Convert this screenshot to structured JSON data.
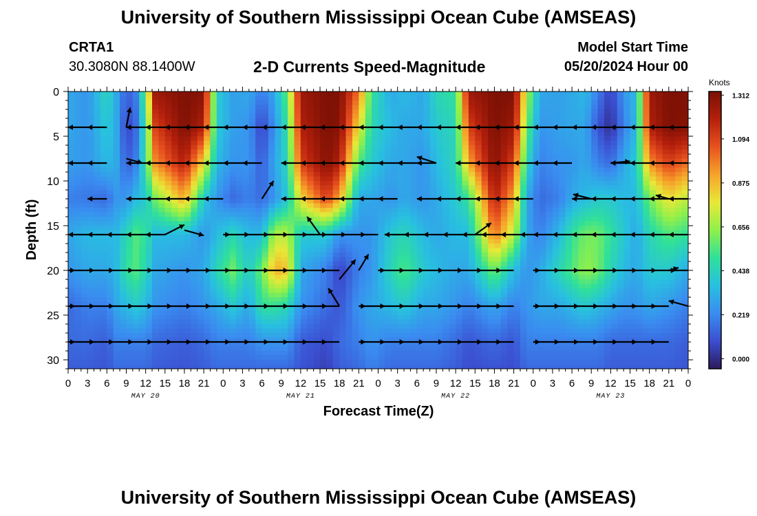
{
  "header": {
    "title": "University of Southern Mississippi Ocean Cube (AMSEAS)",
    "station": "CRTA1",
    "coords": "30.3080N  88.1400W",
    "subtitle": "2-D Currents Speed-Magnitude",
    "model_start_label": "Model Start Time",
    "model_start_value": "05/20/2024 Hour 00"
  },
  "footer": {
    "title": "University of Southern Mississippi Ocean Cube (AMSEAS)"
  },
  "chart_data": {
    "type": "heatmap",
    "title": "2-D Currents Speed-Magnitude",
    "xlabel": "Forecast Time(Z)",
    "ylabel": "Depth (ft)",
    "xlim": [
      0,
      96
    ],
    "ylim": [
      0,
      31
    ],
    "x_ticks": [
      {
        "v": 0,
        "label": "0"
      },
      {
        "v": 3,
        "label": "3"
      },
      {
        "v": 6,
        "label": "6"
      },
      {
        "v": 9,
        "label": "9"
      },
      {
        "v": 12,
        "label": "12"
      },
      {
        "v": 15,
        "label": "15"
      },
      {
        "v": 18,
        "label": "18"
      },
      {
        "v": 21,
        "label": "21"
      },
      {
        "v": 24,
        "label": "0"
      },
      {
        "v": 27,
        "label": "3"
      },
      {
        "v": 30,
        "label": "6"
      },
      {
        "v": 33,
        "label": "9"
      },
      {
        "v": 36,
        "label": "12"
      },
      {
        "v": 39,
        "label": "15"
      },
      {
        "v": 42,
        "label": "18"
      },
      {
        "v": 45,
        "label": "21"
      },
      {
        "v": 48,
        "label": "0"
      },
      {
        "v": 51,
        "label": "3"
      },
      {
        "v": 54,
        "label": "6"
      },
      {
        "v": 57,
        "label": "9"
      },
      {
        "v": 60,
        "label": "12"
      },
      {
        "v": 63,
        "label": "15"
      },
      {
        "v": 66,
        "label": "18"
      },
      {
        "v": 69,
        "label": "21"
      },
      {
        "v": 72,
        "label": "0"
      },
      {
        "v": 75,
        "label": "3"
      },
      {
        "v": 78,
        "label": "6"
      },
      {
        "v": 81,
        "label": "9"
      },
      {
        "v": 84,
        "label": "12"
      },
      {
        "v": 87,
        "label": "15"
      },
      {
        "v": 90,
        "label": "18"
      },
      {
        "v": 93,
        "label": "21"
      },
      {
        "v": 96,
        "label": "0"
      }
    ],
    "day_labels": [
      {
        "v": 12,
        "label": "MAY 20"
      },
      {
        "v": 36,
        "label": "MAY 21"
      },
      {
        "v": 60,
        "label": "MAY 22"
      },
      {
        "v": 84,
        "label": "MAY 23"
      }
    ],
    "y_ticks": [
      0,
      5,
      10,
      15,
      20,
      25,
      30
    ],
    "colorbar": {
      "units": "Knots",
      "min": -0.05,
      "max": 1.33,
      "ticks": [
        {
          "v": 1.312,
          "label": "1.312"
        },
        {
          "v": 1.094,
          "label": "1.094"
        },
        {
          "v": 0.875,
          "label": "0.875"
        },
        {
          "v": 0.656,
          "label": "0.656"
        },
        {
          "v": 0.438,
          "label": "0.438"
        },
        {
          "v": 0.219,
          "label": "0.219"
        },
        {
          "v": 0.0,
          "label": "0.000"
        }
      ],
      "colors": [
        "#2c1a5c",
        "#3b4fd1",
        "#3a8cf0",
        "#28c0e0",
        "#2fe09a",
        "#8ff04a",
        "#e8e838",
        "#f6a42a",
        "#e8521f",
        "#b5200c",
        "#7a1004"
      ]
    },
    "speed_depths": [
      0,
      4,
      8,
      12,
      16,
      20,
      24,
      28,
      31
    ],
    "speed_columns": [
      {
        "t": 0,
        "s": [
          0.3,
          0.3,
          0.28,
          0.2,
          0.3,
          0.25,
          0.15,
          0.15,
          0.12
        ]
      },
      {
        "t": 3,
        "s": [
          0.25,
          0.25,
          0.25,
          0.18,
          0.35,
          0.3,
          0.2,
          0.15,
          0.12
        ]
      },
      {
        "t": 6,
        "s": [
          0.45,
          0.4,
          0.35,
          0.15,
          0.35,
          0.3,
          0.2,
          0.12,
          0.1
        ]
      },
      {
        "t": 7.5,
        "s": [
          0.3,
          0.3,
          0.3,
          0.25,
          0.35,
          0.35,
          0.3,
          0.2,
          0.15
        ]
      },
      {
        "t": 9,
        "s": [
          0.12,
          0.05,
          0.12,
          0.25,
          0.45,
          0.5,
          0.35,
          0.2,
          0.15
        ]
      },
      {
        "t": 10.5,
        "s": [
          0.2,
          0.15,
          0.2,
          0.35,
          0.55,
          0.55,
          0.4,
          0.2,
          0.15
        ]
      },
      {
        "t": 12,
        "s": [
          0.6,
          0.5,
          0.5,
          0.4,
          0.5,
          0.45,
          0.35,
          0.2,
          0.15
        ]
      },
      {
        "t": 13.5,
        "s": [
          1.25,
          1.1,
          0.95,
          0.6,
          0.35,
          0.3,
          0.25,
          0.15,
          0.12
        ]
      },
      {
        "t": 18,
        "s": [
          1.32,
          1.32,
          1.2,
          0.9,
          0.35,
          0.25,
          0.2,
          0.12,
          0.1
        ]
      },
      {
        "t": 21,
        "s": [
          1.3,
          1.2,
          0.8,
          0.4,
          0.25,
          0.3,
          0.25,
          0.15,
          0.12
        ]
      },
      {
        "t": 23,
        "s": [
          0.4,
          0.4,
          0.35,
          0.25,
          0.35,
          0.45,
          0.3,
          0.2,
          0.15
        ]
      },
      {
        "t": 25.5,
        "s": [
          0.28,
          0.28,
          0.25,
          0.15,
          0.45,
          0.6,
          0.4,
          0.2,
          0.15
        ]
      },
      {
        "t": 28,
        "s": [
          0.3,
          0.25,
          0.25,
          0.2,
          0.35,
          0.4,
          0.3,
          0.2,
          0.15
        ]
      },
      {
        "t": 30,
        "s": [
          0.2,
          0.05,
          0.12,
          0.15,
          0.35,
          0.6,
          0.5,
          0.25,
          0.15
        ]
      },
      {
        "t": 32,
        "s": [
          0.3,
          0.25,
          0.3,
          0.25,
          0.7,
          0.9,
          0.5,
          0.25,
          0.15
        ]
      },
      {
        "t": 34,
        "s": [
          0.6,
          0.5,
          0.45,
          0.4,
          0.7,
          0.85,
          0.45,
          0.25,
          0.15
        ]
      },
      {
        "t": 36,
        "s": [
          1.25,
          1.2,
          1.1,
          0.8,
          0.4,
          0.3,
          0.25,
          0.12,
          0.1
        ]
      },
      {
        "t": 40,
        "s": [
          1.32,
          1.32,
          1.3,
          1.1,
          0.4,
          0.2,
          0.15,
          0.08,
          0.05
        ]
      },
      {
        "t": 42,
        "s": [
          1.32,
          1.3,
          1.2,
          0.9,
          0.25,
          0.05,
          0.1,
          0.15,
          0.12
        ]
      },
      {
        "t": 45,
        "s": [
          1.0,
          0.8,
          0.55,
          0.3,
          0.25,
          0.2,
          0.25,
          0.2,
          0.15
        ]
      },
      {
        "t": 47,
        "s": [
          0.5,
          0.45,
          0.4,
          0.3,
          0.25,
          0.25,
          0.3,
          0.25,
          0.2
        ]
      },
      {
        "t": 50,
        "s": [
          0.3,
          0.35,
          0.3,
          0.25,
          0.4,
          0.45,
          0.35,
          0.2,
          0.15
        ]
      },
      {
        "t": 52,
        "s": [
          0.35,
          0.3,
          0.3,
          0.3,
          0.45,
          0.55,
          0.4,
          0.2,
          0.15
        ]
      },
      {
        "t": 55,
        "s": [
          0.3,
          0.3,
          0.25,
          0.25,
          0.35,
          0.4,
          0.3,
          0.2,
          0.15
        ]
      },
      {
        "t": 57,
        "s": [
          0.45,
          0.4,
          0.35,
          0.3,
          0.3,
          0.35,
          0.3,
          0.2,
          0.15
        ]
      },
      {
        "t": 60,
        "s": [
          0.5,
          0.45,
          0.45,
          0.4,
          0.35,
          0.3,
          0.25,
          0.15,
          0.12
        ]
      },
      {
        "t": 62,
        "s": [
          1.25,
          1.1,
          0.9,
          0.5,
          0.35,
          0.3,
          0.2,
          0.1,
          0.08
        ]
      },
      {
        "t": 66,
        "s": [
          1.32,
          1.32,
          1.3,
          1.2,
          1.0,
          0.6,
          0.3,
          0.15,
          0.1
        ]
      },
      {
        "t": 69,
        "s": [
          1.32,
          1.25,
          1.1,
          0.9,
          0.7,
          0.35,
          0.2,
          0.1,
          0.08
        ]
      },
      {
        "t": 71,
        "s": [
          0.7,
          0.6,
          0.45,
          0.3,
          0.3,
          0.25,
          0.25,
          0.2,
          0.15
        ]
      },
      {
        "t": 73,
        "s": [
          0.3,
          0.25,
          0.2,
          0.15,
          0.2,
          0.3,
          0.3,
          0.2,
          0.15
        ]
      },
      {
        "t": 76,
        "s": [
          0.28,
          0.28,
          0.25,
          0.2,
          0.35,
          0.45,
          0.3,
          0.2,
          0.15
        ]
      },
      {
        "t": 78,
        "s": [
          0.3,
          0.3,
          0.25,
          0.3,
          0.5,
          0.55,
          0.35,
          0.2,
          0.15
        ]
      },
      {
        "t": 80,
        "s": [
          0.35,
          0.3,
          0.3,
          0.35,
          0.6,
          0.65,
          0.4,
          0.2,
          0.15
        ]
      },
      {
        "t": 82,
        "s": [
          0.2,
          0.1,
          0.2,
          0.4,
          0.6,
          0.6,
          0.35,
          0.2,
          0.15
        ]
      },
      {
        "t": 84,
        "s": [
          0.05,
          0.0,
          0.15,
          0.4,
          0.5,
          0.45,
          0.3,
          0.15,
          0.12
        ]
      },
      {
        "t": 86,
        "s": [
          0.25,
          0.2,
          0.3,
          0.35,
          0.4,
          0.35,
          0.25,
          0.15,
          0.12
        ]
      },
      {
        "t": 88,
        "s": [
          0.35,
          0.35,
          0.4,
          0.35,
          0.3,
          0.3,
          0.25,
          0.15,
          0.12
        ]
      },
      {
        "t": 90,
        "s": [
          1.25,
          1.2,
          0.95,
          0.6,
          0.45,
          0.4,
          0.3,
          0.15,
          0.12
        ]
      },
      {
        "t": 93,
        "s": [
          1.32,
          1.32,
          1.1,
          0.8,
          0.55,
          0.4,
          0.25,
          0.15,
          0.12
        ]
      },
      {
        "t": 96,
        "s": [
          1.32,
          1.3,
          1.0,
          0.7,
          0.5,
          0.3,
          0.2,
          0.12,
          0.1
        ]
      }
    ],
    "vector_depths": [
      4,
      8,
      12,
      16,
      20,
      24,
      28
    ],
    "vectors": [
      {
        "d": 4,
        "t0": 0,
        "t1": 6,
        "dir": -1,
        "ang": 0
      },
      {
        "d": 4,
        "t0": 9,
        "t1": 24,
        "dir": -1,
        "ang": 0
      },
      {
        "d": 4,
        "t0": 24,
        "t1": 48,
        "dir": -1,
        "ang": 0
      },
      {
        "d": 4,
        "t0": 48,
        "t1": 72,
        "dir": -1,
        "ang": 0
      },
      {
        "d": 4,
        "t0": 72,
        "t1": 96,
        "dir": -1,
        "ang": 0
      },
      {
        "d": 8,
        "t0": 0,
        "t1": 6,
        "dir": -1,
        "ang": 0
      },
      {
        "d": 8,
        "t0": 9,
        "t1": 24,
        "dir": -1,
        "ang": 0
      },
      {
        "d": 8,
        "t0": 24,
        "t1": 30,
        "dir": -1,
        "ang": 0
      },
      {
        "d": 8,
        "t0": 33,
        "t1": 48,
        "dir": -1,
        "ang": 0
      },
      {
        "d": 8,
        "t0": 48,
        "t1": 57,
        "dir": -1,
        "ang": 0
      },
      {
        "d": 8,
        "t0": 60,
        "t1": 78,
        "dir": -1,
        "ang": 0
      },
      {
        "d": 8,
        "t0": 84,
        "t1": 96,
        "dir": -1,
        "ang": 0
      },
      {
        "d": 12,
        "t0": 3,
        "t1": 6,
        "dir": -1,
        "ang": 0
      },
      {
        "d": 12,
        "t0": 9,
        "t1": 24,
        "dir": -1,
        "ang": 0
      },
      {
        "d": 12,
        "t0": 33,
        "t1": 51,
        "dir": -1,
        "ang": 0
      },
      {
        "d": 12,
        "t0": 54,
        "t1": 72,
        "dir": -1,
        "ang": 0
      },
      {
        "d": 12,
        "t0": 78,
        "t1": 96,
        "dir": -1,
        "ang": 0
      },
      {
        "d": 16,
        "t0": 0,
        "t1": 15,
        "dir": -1,
        "ang": 0
      },
      {
        "d": 16,
        "t0": 24,
        "t1": 48,
        "dir": 1,
        "ang": 0
      },
      {
        "d": 16,
        "t0": 49,
        "t1": 72,
        "dir": -1,
        "ang": 0
      },
      {
        "d": 16,
        "t0": 72,
        "t1": 96,
        "dir": -1,
        "ang": 0
      },
      {
        "d": 20,
        "t0": 0,
        "t1": 21,
        "dir": 1,
        "ang": 0
      },
      {
        "d": 20,
        "t0": 21,
        "t1": 42,
        "dir": 1,
        "ang": 0
      },
      {
        "d": 20,
        "t0": 48,
        "t1": 69,
        "dir": 1,
        "ang": 0
      },
      {
        "d": 20,
        "t0": 72,
        "t1": 96,
        "dir": 1,
        "ang": 0
      },
      {
        "d": 24,
        "t0": 0,
        "t1": 21,
        "dir": 1,
        "ang": 0
      },
      {
        "d": 24,
        "t0": 21,
        "t1": 42,
        "dir": 1,
        "ang": 0
      },
      {
        "d": 24,
        "t0": 45,
        "t1": 69,
        "dir": 1,
        "ang": 0
      },
      {
        "d": 24,
        "t0": 72,
        "t1": 93,
        "dir": 1,
        "ang": 0
      },
      {
        "d": 28,
        "t0": 0,
        "t1": 21,
        "dir": 1,
        "ang": 0
      },
      {
        "d": 28,
        "t0": 21,
        "t1": 42,
        "dir": 1,
        "ang": 0
      },
      {
        "d": 28,
        "t0": 45,
        "t1": 60,
        "dir": 1,
        "ang": 0
      },
      {
        "d": 28,
        "t0": 60,
        "t1": 69,
        "dir": 1,
        "ang": 0
      },
      {
        "d": 28,
        "t0": 72,
        "t1": 93,
        "dir": 1,
        "ang": 0
      }
    ],
    "diagonal_vectors": [
      {
        "t": 9,
        "d": 4,
        "dt": 0.6,
        "dd": -2.2
      },
      {
        "t": 9,
        "d": 7.5,
        "dt": 2.5,
        "dd": 0.5
      },
      {
        "t": 30,
        "d": 12,
        "dt": 1.8,
        "dd": -2.0
      },
      {
        "t": 15,
        "d": 16,
        "dt": 3.0,
        "dd": -1.1
      },
      {
        "t": 18,
        "d": 15.5,
        "dt": 3.0,
        "dd": 0.6
      },
      {
        "t": 39,
        "d": 16,
        "dt": -2.0,
        "dd": -2.0
      },
      {
        "t": 42,
        "d": 21,
        "dt": 2.5,
        "dd": -2.2
      },
      {
        "t": 45,
        "d": 20,
        "dt": 1.5,
        "dd": -1.8
      },
      {
        "t": 42,
        "d": 24,
        "dt": -1.7,
        "dd": -2.0
      },
      {
        "t": 63,
        "d": 16,
        "dt": 2.5,
        "dd": -1.3
      },
      {
        "t": 57,
        "d": 8,
        "dt": -3.0,
        "dd": -0.7
      },
      {
        "t": 81,
        "d": 12,
        "dt": -2.8,
        "dd": -0.5
      },
      {
        "t": 84,
        "d": 8,
        "dt": 3.0,
        "dd": -0.2
      },
      {
        "t": 93,
        "d": 12,
        "dt": -2.0,
        "dd": -0.4
      },
      {
        "t": 93,
        "d": 20,
        "dt": 1.5,
        "dd": -0.3
      },
      {
        "t": 96,
        "d": 24,
        "dt": -3.0,
        "dd": -0.6
      }
    ]
  }
}
